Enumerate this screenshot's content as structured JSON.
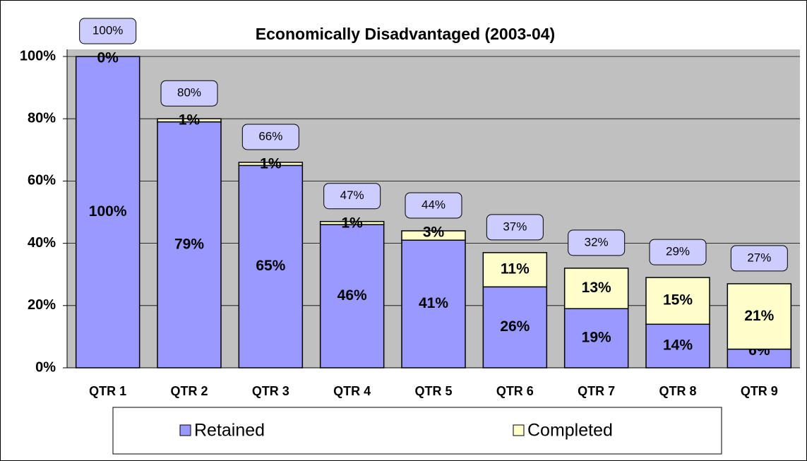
{
  "chart_data": {
    "type": "stacked_bar",
    "title": "Economically Disadvantaged (2003-04)",
    "categories": [
      "QTR 1",
      "QTR 2",
      "QTR 3",
      "QTR 4",
      "QTR 5",
      "QTR 6",
      "QTR 7",
      "QTR 8",
      "QTR 9"
    ],
    "series": [
      {
        "name": "Retained",
        "color": "#9999ff",
        "values": [
          100,
          79,
          65,
          46,
          41,
          26,
          19,
          14,
          6
        ],
        "value_labels": [
          "100%",
          "79%",
          "65%",
          "46%",
          "41%",
          "26%",
          "19%",
          "14%",
          "6%"
        ]
      },
      {
        "name": "Completed",
        "color": "#ffffcc",
        "values": [
          0,
          1,
          1,
          1,
          3,
          11,
          13,
          15,
          21
        ],
        "value_labels": [
          "0%",
          "1%",
          "1%",
          "1%",
          "3%",
          "11%",
          "13%",
          "15%",
          "21%"
        ]
      }
    ],
    "totals": [
      100,
      80,
      66,
      47,
      44,
      37,
      32,
      29,
      27
    ],
    "total_labels": [
      "100%",
      "80%",
      "66%",
      "47%",
      "44%",
      "37%",
      "32%",
      "29%",
      "27%"
    ],
    "total_label_color": "#ccccff",
    "plot_background": "#c0c0c0",
    "ylim": [
      0,
      100
    ],
    "yticks": [
      {
        "value": 0,
        "label": "0%"
      },
      {
        "value": 20,
        "label": "20%"
      },
      {
        "value": 40,
        "label": "40%"
      },
      {
        "value": 60,
        "label": "60%"
      },
      {
        "value": 80,
        "label": "80%"
      },
      {
        "value": 100,
        "label": "100%"
      }
    ],
    "grid": true,
    "legend": "bottom"
  }
}
